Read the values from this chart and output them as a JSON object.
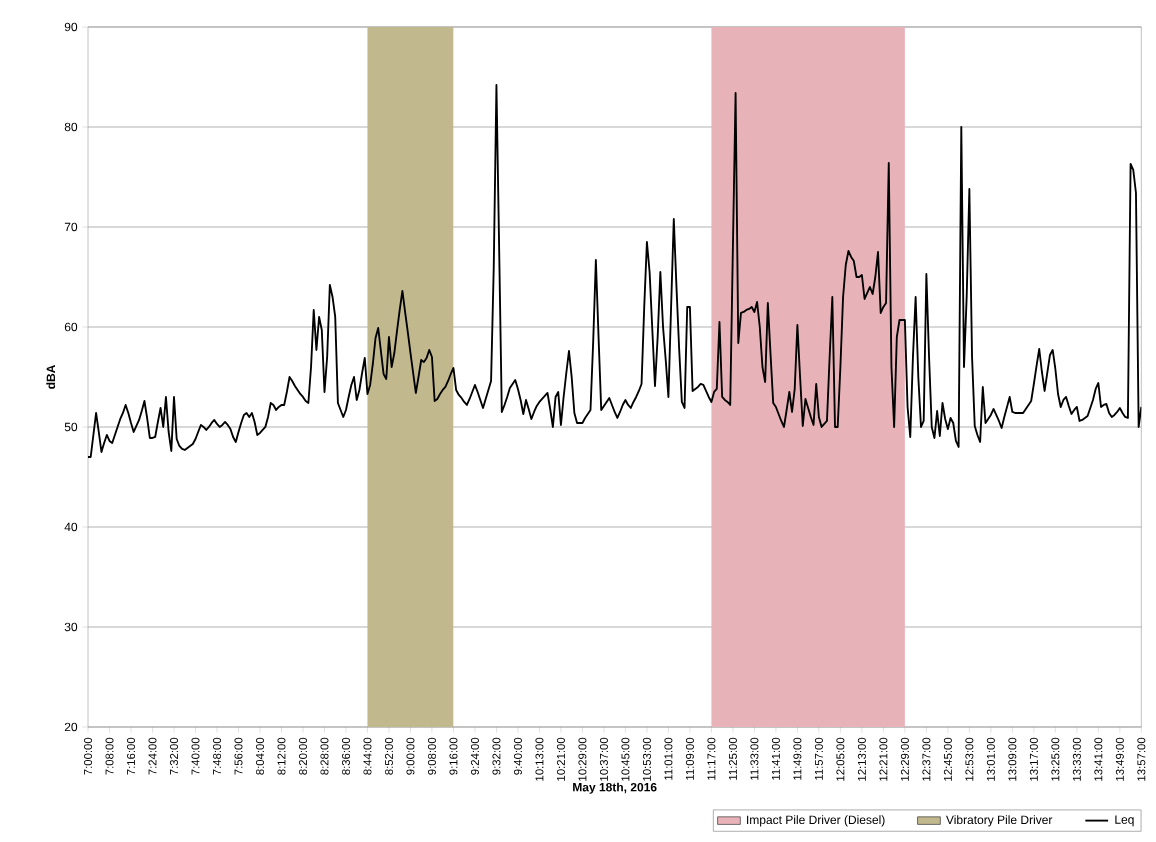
{
  "chart_data": {
    "type": "line",
    "xlabel": "May 18th, 2016",
    "ylabel": "dBA",
    "ylim": [
      20,
      90
    ],
    "yticks": [
      20,
      30,
      40,
      50,
      60,
      70,
      80,
      90
    ],
    "categories": [
      "7:00:00",
      null,
      null,
      null,
      null,
      null,
      null,
      null,
      "7:08:00",
      null,
      null,
      null,
      null,
      null,
      null,
      null,
      "7:16:00",
      null,
      null,
      null,
      null,
      null,
      null,
      null,
      "7:24:00",
      null,
      null,
      null,
      null,
      null,
      null,
      null,
      "7:32:00",
      null,
      null,
      null,
      null,
      null,
      null,
      null,
      "7:40:00",
      null,
      null,
      null,
      null,
      null,
      null,
      null,
      "7:48:00",
      null,
      null,
      null,
      null,
      null,
      null,
      null,
      "7:56:00",
      null,
      null,
      null,
      null,
      null,
      null,
      null,
      "8:04:00",
      null,
      null,
      null,
      null,
      null,
      null,
      null,
      "8:12:00",
      null,
      null,
      null,
      null,
      null,
      null,
      null,
      "8:20:00",
      null,
      null,
      null,
      null,
      null,
      null,
      null,
      "8:28:00",
      null,
      null,
      null,
      null,
      null,
      null,
      null,
      "8:36:00",
      null,
      null,
      null,
      null,
      null,
      null,
      null,
      "8:44:00",
      null,
      null,
      null,
      null,
      null,
      null,
      null,
      "8:52:00",
      null,
      null,
      null,
      null,
      null,
      null,
      null,
      "9:00:00",
      null,
      null,
      null,
      null,
      null,
      null,
      null,
      "9:08:00",
      null,
      null,
      null,
      null,
      null,
      null,
      null,
      "9:16:00",
      null,
      null,
      null,
      null,
      null,
      null,
      null,
      "9:24:00",
      null,
      null,
      null,
      null,
      null,
      null,
      null,
      "9:32:00",
      null,
      null,
      null,
      null,
      null,
      null,
      null,
      "9:40:00",
      null,
      null,
      null,
      null,
      null,
      null,
      null,
      "10:13:00",
      null,
      null,
      null,
      null,
      null,
      null,
      null,
      "10:21:00",
      null,
      null,
      null,
      null,
      null,
      null,
      null,
      "10:29:00",
      null,
      null,
      null,
      null,
      null,
      null,
      null,
      "10:37:00",
      null,
      null,
      null,
      null,
      null,
      null,
      null,
      "10:45:00",
      null,
      null,
      null,
      null,
      null,
      null,
      null,
      "10:53:00",
      null,
      null,
      null,
      null,
      null,
      null,
      null,
      "11:01:00",
      null,
      null,
      null,
      null,
      null,
      null,
      null,
      "11:09:00",
      null,
      null,
      null,
      null,
      null,
      null,
      null,
      "11:17:00",
      null,
      null,
      null,
      null,
      null,
      null,
      null,
      "11:25:00",
      null,
      null,
      null,
      null,
      null,
      null,
      null,
      "11:33:00",
      null,
      null,
      null,
      null,
      null,
      null,
      null,
      "11:41:00",
      null,
      null,
      null,
      null,
      null,
      null,
      null,
      "11:49:00",
      null,
      null,
      null,
      null,
      null,
      null,
      null,
      "11:57:00",
      null,
      null,
      null,
      null,
      null,
      null,
      null,
      "12:05:00",
      null,
      null,
      null,
      null,
      null,
      null,
      null,
      "12:13:00",
      null,
      null,
      null,
      null,
      null,
      null,
      null,
      "12:21:00",
      null,
      null,
      null,
      null,
      null,
      null,
      null,
      "12:29:00",
      null,
      null,
      null,
      null,
      null,
      null,
      null,
      "12:37:00",
      null,
      null,
      null,
      null,
      null,
      null,
      null,
      "12:45:00",
      null,
      null,
      null,
      null,
      null,
      null,
      null,
      "12:53:00",
      null,
      null,
      null,
      null,
      null,
      null,
      null,
      "13:01:00",
      null,
      null,
      null,
      null,
      null,
      null,
      null,
      "13:09:00",
      null,
      null,
      null,
      null,
      null,
      null,
      null,
      "13:17:00",
      null,
      null,
      null,
      null,
      null,
      null,
      null,
      "13:25:00",
      null,
      null,
      null,
      null,
      null,
      null,
      null,
      "13:33:00",
      null,
      null,
      null,
      null,
      null,
      null,
      null,
      "13:41:00",
      null,
      null,
      null,
      null,
      null,
      null,
      null,
      "13:49:00",
      null,
      null,
      null,
      null,
      null,
      null,
      null,
      "13:57:00"
    ],
    "grid": "y",
    "legend": "bottom right",
    "marker": "none",
    "line_style": "solid",
    "bands": [
      {
        "axis": "x",
        "from": "11:17:00",
        "to": "12:29:00",
        "label": "Impact Pile Driver (Diesel)",
        "color": "#e8b3b8"
      },
      {
        "axis": "x",
        "from": "8:44:00",
        "to": "9:16:00",
        "label": "Vibratory Pile Driver",
        "color": "#c2b88e"
      }
    ],
    "series": [
      {
        "name": "Leq",
        "color": "#000000",
        "values": [
          47,
          47,
          49.2,
          51.4,
          49.5,
          47.5,
          48.4,
          49.2,
          48.6,
          48.4,
          49.2,
          50,
          50.8,
          51.4,
          52.2,
          51.4,
          50.4,
          49.5,
          50.1,
          50.7,
          51.6,
          52.6,
          50.9,
          48.9,
          48.9,
          49,
          50.5,
          51.9,
          50,
          53,
          49.5,
          47.6,
          53,
          48.8,
          48.1,
          47.8,
          47.7,
          47.9,
          48.1,
          48.3,
          48.8,
          49.5,
          50.2,
          50,
          49.7,
          50,
          50.4,
          50.7,
          50.3,
          50,
          50.2,
          50.5,
          50.2,
          49.8,
          49,
          48.5,
          49.5,
          50.4,
          51.2,
          51.4,
          51,
          51.4,
          50.5,
          49.2,
          49.4,
          49.7,
          50,
          51,
          52.4,
          52.2,
          51.7,
          52,
          52.2,
          52.2,
          53.5,
          55,
          54.6,
          54.1,
          53.7,
          53.3,
          53,
          52.6,
          52.4,
          56,
          61.7,
          57.7,
          61,
          59.7,
          53.5,
          57,
          64.2,
          63,
          61,
          52.4,
          51.7,
          51,
          51.7,
          53,
          54.2,
          55,
          52.7,
          53.7,
          55.4,
          56.9,
          53.3,
          54.2,
          56.3,
          58.9,
          59.9,
          57.6,
          55.3,
          54.8,
          59,
          56,
          57.4,
          59.6,
          61.7,
          63.6,
          61.5,
          59.5,
          57.4,
          55.4,
          53.4,
          55,
          56.7,
          56.5,
          56.9,
          57.7,
          57,
          52.6,
          52.8,
          53.3,
          53.7,
          54,
          54.6,
          55.3,
          55.9,
          53.7,
          53.2,
          52.9,
          52.5,
          52.2,
          52.8,
          53.5,
          54.2,
          53.5,
          52.7,
          51.9,
          52.8,
          53.7,
          54.6,
          66,
          84.2,
          68,
          51.5,
          52.2,
          53,
          53.9,
          54.3,
          54.7,
          53.8,
          52.7,
          51.3,
          52.7,
          51.8,
          50.8,
          51.5,
          52.1,
          52.5,
          52.8,
          53.1,
          53.4,
          51.8,
          50,
          53,
          53.5,
          50.2,
          53,
          55.4,
          57.6,
          55,
          51.4,
          50.4,
          50.4,
          50.4,
          50.9,
          51.3,
          51.7,
          58.5,
          66.7,
          59,
          51.7,
          52.1,
          52.5,
          52.9,
          52.2,
          51.5,
          50.9,
          51.5,
          52.2,
          52.7,
          52.2,
          51.9,
          52.5,
          53,
          53.6,
          54.3,
          62,
          68.5,
          65.5,
          59.8,
          54.1,
          59,
          65.5,
          60,
          56.7,
          53,
          62,
          70.8,
          64,
          57.8,
          52.5,
          51.9,
          62,
          62,
          53.6,
          53.8,
          54,
          54.3,
          54.2,
          53.6,
          53,
          52.5,
          53.5,
          53.8,
          60.5,
          53,
          52.7,
          52.5,
          52.2,
          68,
          83.4,
          58.4,
          61.4,
          61.5,
          61.7,
          61.8,
          62,
          61.5,
          62.5,
          60,
          56,
          54.5,
          62.4,
          57.3,
          52.4,
          52,
          51.3,
          50.6,
          50,
          51.7,
          53.5,
          51.5,
          53.8,
          60.2,
          55,
          50.1,
          52.8,
          51.9,
          51,
          50.2,
          54.3,
          51,
          50,
          50.3,
          50.6,
          57,
          63,
          50,
          50,
          56,
          63,
          66.2,
          67.6,
          67,
          66.6,
          65,
          65,
          65.2,
          62.8,
          63.4,
          64,
          63.3,
          65,
          67.5,
          61.4,
          62,
          62.4,
          76.4,
          56,
          50,
          59,
          60.7,
          60.7,
          60.7,
          52,
          49,
          57,
          63,
          55,
          50,
          50.6,
          65.3,
          57,
          50,
          48.9,
          51.6,
          49.1,
          52.4,
          50.8,
          49.8,
          50.9,
          50.4,
          48.6,
          48,
          80,
          56,
          63,
          73.8,
          57,
          50.1,
          49.2,
          48.5,
          54,
          50.4,
          50.8,
          51.2,
          51.8,
          51.2,
          50.6,
          49.9,
          51,
          52,
          53,
          51.5,
          51.4,
          51.4,
          51.4,
          51.4,
          51.8,
          52.2,
          52.6,
          54.3,
          56.1,
          57.8,
          55.5,
          53.6,
          55.4,
          57.2,
          57.7,
          55.8,
          53.3,
          52,
          52.7,
          53,
          52.1,
          51.3,
          51.7,
          52,
          50.6,
          50.7,
          50.9,
          51.1,
          51.9,
          52.7,
          53.8,
          54.4,
          52,
          52.2,
          52.3,
          51.4,
          51,
          51.2,
          51.5,
          51.9,
          51.4,
          51,
          50.9,
          76.3,
          75.7,
          73.4,
          50,
          52
        ]
      }
    ]
  }
}
